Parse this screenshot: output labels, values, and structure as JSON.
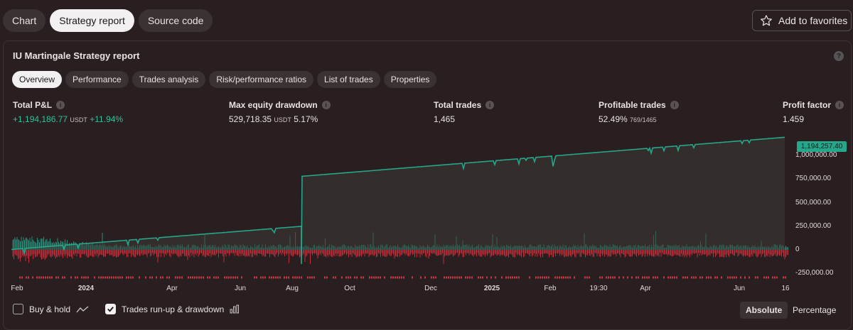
{
  "top_tabs": [
    "Chart",
    "Strategy report",
    "Source code"
  ],
  "favorites_label": "Add to favorites",
  "report_title": "IU Martingale Strategy report",
  "sub_tabs": [
    "Overview",
    "Performance",
    "Trades analysis",
    "Risk/performance ratios",
    "List of trades",
    "Properties"
  ],
  "metrics": {
    "total_pnl": {
      "label": "Total P&L",
      "value": "+1,194,186.77",
      "unit": "USDT",
      "pct": "+11.94%"
    },
    "max_dd": {
      "label": "Max equity drawdown",
      "value": "529,718.35",
      "unit": "USDT",
      "pct": "5.17%"
    },
    "total_trades": {
      "label": "Total trades",
      "value": "1,465"
    },
    "profitable": {
      "label": "Profitable trades",
      "value": "52.49%",
      "ratio": "769/1465"
    },
    "profit_factor": {
      "label": "Profit factor",
      "value": "1.459"
    }
  },
  "chart_data": {
    "type": "line",
    "current_value": "1,194,257.40",
    "y_ticks": [
      "1,000,000.00",
      "750,000.00",
      "500,000.00",
      "250,000.00",
      "0",
      "-250,000.00"
    ],
    "x_ticks": [
      "Feb",
      "2024",
      "Apr",
      "Jun",
      "Aug",
      "Oct",
      "Dec",
      "2025",
      "Feb",
      "19:30",
      "Apr",
      "Jun",
      "16"
    ],
    "ylim": [
      -330000,
      1250000
    ],
    "equity_line_color": "#26a68a",
    "runup_color": "#26a68a",
    "drawdown_color": "#d9303d"
  },
  "bottom": {
    "buy_hold_label": "Buy & hold",
    "runup_label": "Trades run-up & drawdown",
    "absolute_label": "Absolute",
    "percentage_label": "Percentage"
  }
}
